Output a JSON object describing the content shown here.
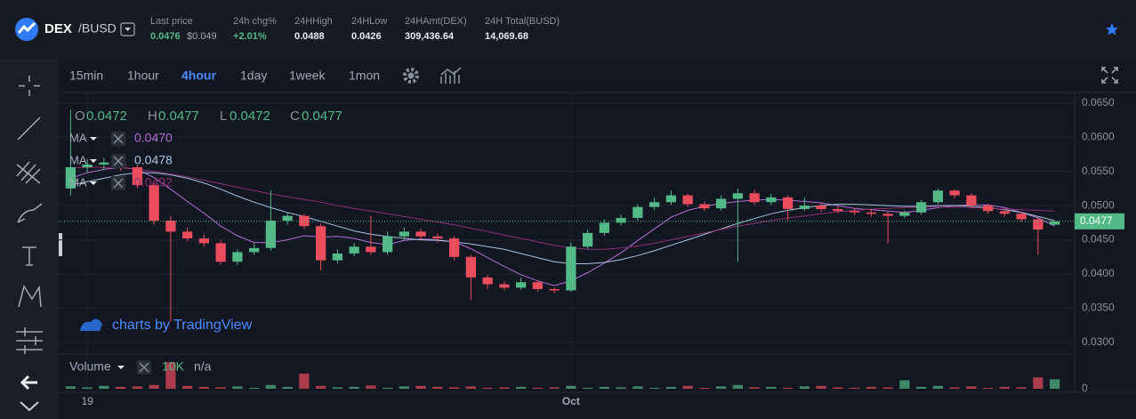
{
  "header": {
    "symbol": "DEX",
    "pair": "/BUSD",
    "stats": [
      {
        "label": "Last price",
        "value": "0.0476",
        "sub": "$0.049"
      },
      {
        "label": "24h chg%",
        "value": "+2.01%"
      },
      {
        "label": "24HHigh",
        "value": "0.0488"
      },
      {
        "label": "24HLow",
        "value": "0.0426"
      },
      {
        "label": "24HAmt(DEX)",
        "value": "309,436.64"
      },
      {
        "label": "24H Total(BUSD)",
        "value": "14,069.68"
      }
    ]
  },
  "toolbar": {
    "intervals": [
      "15min",
      "1hour",
      "4hour",
      "1day",
      "1week",
      "1mon"
    ],
    "active": 2
  },
  "chart_data": {
    "type": "candlestick",
    "watermark": "charts by TradingView",
    "legend": {
      "o_label": "O",
      "o": "0.0472",
      "h_label": "H",
      "h": "0.0477",
      "l_label": "L",
      "l": "0.0472",
      "c_label": "C",
      "c": "0.0477"
    },
    "last_price_label": "0.0477",
    "up_color": "#53b987",
    "down_color": "#eb4d5c",
    "ylim": [
      0.0283,
      0.0664
    ],
    "yticks": [
      {
        "value": 0.065,
        "label": "0.0650"
      },
      {
        "value": 0.06,
        "label": "0.0600"
      },
      {
        "value": 0.055,
        "label": "0.0550"
      },
      {
        "value": 0.05,
        "label": "0.0500"
      },
      {
        "value": 0.045,
        "label": "0.0450"
      },
      {
        "value": 0.04,
        "label": "0.0400"
      },
      {
        "value": 0.035,
        "label": "0.0350"
      },
      {
        "value": 0.03,
        "label": "0.0300"
      }
    ],
    "grid": true,
    "volume": {
      "name": "Volume",
      "value_label": "10K",
      "extra": "n/a",
      "vlim": [
        0,
        30000
      ],
      "vticks": [
        0
      ]
    },
    "categories": [
      null,
      "19",
      null,
      null,
      null,
      null,
      null,
      null,
      null,
      null,
      null,
      null,
      null,
      null,
      null,
      null,
      null,
      null,
      null,
      null,
      null,
      null,
      null,
      null,
      null,
      null,
      null,
      null,
      null,
      null,
      "Oct",
      null,
      null,
      null,
      null,
      null,
      null,
      null,
      null,
      null,
      null,
      null,
      null,
      null,
      null,
      null,
      null,
      null,
      null,
      null,
      null,
      null,
      null,
      null,
      null,
      null,
      null,
      null,
      null,
      null
    ],
    "candles": [
      {
        "o": 0.0525,
        "h": 0.064,
        "l": 0.0515,
        "c": 0.0556,
        "v": 2500
      },
      {
        "o": 0.0556,
        "h": 0.0568,
        "l": 0.0548,
        "c": 0.056,
        "v": 1500
      },
      {
        "o": 0.056,
        "h": 0.057,
        "l": 0.0552,
        "c": 0.0563,
        "v": 3000
      },
      {
        "o": 0.0563,
        "h": 0.0567,
        "l": 0.0551,
        "c": 0.0556,
        "v": 2000
      },
      {
        "o": 0.0556,
        "h": 0.0559,
        "l": 0.0525,
        "c": 0.053,
        "v": 2500
      },
      {
        "o": 0.053,
        "h": 0.0533,
        "l": 0.0472,
        "c": 0.0478,
        "v": 4000
      },
      {
        "o": 0.0478,
        "h": 0.0485,
        "l": 0.033,
        "c": 0.0462,
        "v": 28000
      },
      {
        "o": 0.0462,
        "h": 0.0468,
        "l": 0.0448,
        "c": 0.0452,
        "v": 3000
      },
      {
        "o": 0.0452,
        "h": 0.0458,
        "l": 0.044,
        "c": 0.0445,
        "v": 2000
      },
      {
        "o": 0.0445,
        "h": 0.0449,
        "l": 0.0414,
        "c": 0.0418,
        "v": 1500
      },
      {
        "o": 0.0418,
        "h": 0.0436,
        "l": 0.0413,
        "c": 0.0432,
        "v": 2500
      },
      {
        "o": 0.0432,
        "h": 0.0445,
        "l": 0.0428,
        "c": 0.0438,
        "v": 1000
      },
      {
        "o": 0.0438,
        "h": 0.0522,
        "l": 0.0434,
        "c": 0.0478,
        "v": 4000
      },
      {
        "o": 0.0478,
        "h": 0.049,
        "l": 0.0472,
        "c": 0.0485,
        "v": 2000
      },
      {
        "o": 0.0485,
        "h": 0.0488,
        "l": 0.0465,
        "c": 0.047,
        "v": 16000
      },
      {
        "o": 0.047,
        "h": 0.0474,
        "l": 0.0405,
        "c": 0.042,
        "v": 3000
      },
      {
        "o": 0.042,
        "h": 0.0436,
        "l": 0.0416,
        "c": 0.043,
        "v": 1500
      },
      {
        "o": 0.043,
        "h": 0.0445,
        "l": 0.0426,
        "c": 0.044,
        "v": 2000
      },
      {
        "o": 0.044,
        "h": 0.0485,
        "l": 0.0428,
        "c": 0.0432,
        "v": 3500
      },
      {
        "o": 0.0432,
        "h": 0.0462,
        "l": 0.0428,
        "c": 0.0455,
        "v": 1000
      },
      {
        "o": 0.0455,
        "h": 0.0468,
        "l": 0.045,
        "c": 0.0462,
        "v": 2500
      },
      {
        "o": 0.0462,
        "h": 0.0466,
        "l": 0.045,
        "c": 0.0455,
        "v": 3000
      },
      {
        "o": 0.0455,
        "h": 0.0459,
        "l": 0.0446,
        "c": 0.0452,
        "v": 2000
      },
      {
        "o": 0.0452,
        "h": 0.0455,
        "l": 0.042,
        "c": 0.0425,
        "v": 1500
      },
      {
        "o": 0.0425,
        "h": 0.0428,
        "l": 0.0362,
        "c": 0.0395,
        "v": 2500
      },
      {
        "o": 0.0395,
        "h": 0.0399,
        "l": 0.0378,
        "c": 0.0385,
        "v": 1000
      },
      {
        "o": 0.0385,
        "h": 0.0389,
        "l": 0.0376,
        "c": 0.038,
        "v": 1500
      },
      {
        "o": 0.038,
        "h": 0.0395,
        "l": 0.0377,
        "c": 0.0388,
        "v": 2000
      },
      {
        "o": 0.0388,
        "h": 0.0391,
        "l": 0.0374,
        "c": 0.0378,
        "v": 1000
      },
      {
        "o": 0.0378,
        "h": 0.038,
        "l": 0.0372,
        "c": 0.0376,
        "v": 1500
      },
      {
        "o": 0.0376,
        "h": 0.0446,
        "l": 0.0374,
        "c": 0.044,
        "v": 3000
      },
      {
        "o": 0.044,
        "h": 0.0465,
        "l": 0.0437,
        "c": 0.046,
        "v": 1000
      },
      {
        "o": 0.046,
        "h": 0.048,
        "l": 0.0456,
        "c": 0.0475,
        "v": 2000
      },
      {
        "o": 0.0475,
        "h": 0.0487,
        "l": 0.0471,
        "c": 0.0482,
        "v": 1500
      },
      {
        "o": 0.0482,
        "h": 0.0502,
        "l": 0.0478,
        "c": 0.0498,
        "v": 2500
      },
      {
        "o": 0.0498,
        "h": 0.0512,
        "l": 0.0494,
        "c": 0.0505,
        "v": 1000
      },
      {
        "o": 0.0505,
        "h": 0.0522,
        "l": 0.0501,
        "c": 0.0515,
        "v": 2000
      },
      {
        "o": 0.0515,
        "h": 0.0518,
        "l": 0.0498,
        "c": 0.0502,
        "v": 3000
      },
      {
        "o": 0.0502,
        "h": 0.0506,
        "l": 0.0492,
        "c": 0.0496,
        "v": 1000
      },
      {
        "o": 0.0496,
        "h": 0.0515,
        "l": 0.0493,
        "c": 0.051,
        "v": 2500
      },
      {
        "o": 0.051,
        "h": 0.0525,
        "l": 0.0418,
        "c": 0.0518,
        "v": 4000
      },
      {
        "o": 0.0518,
        "h": 0.0523,
        "l": 0.0501,
        "c": 0.0505,
        "v": 1500
      },
      {
        "o": 0.0505,
        "h": 0.0517,
        "l": 0.0501,
        "c": 0.0512,
        "v": 2000
      },
      {
        "o": 0.0512,
        "h": 0.0515,
        "l": 0.0478,
        "c": 0.0495,
        "v": 1000
      },
      {
        "o": 0.0495,
        "h": 0.0512,
        "l": 0.0492,
        "c": 0.05,
        "v": 2500
      },
      {
        "o": 0.05,
        "h": 0.0503,
        "l": 0.0491,
        "c": 0.0495,
        "v": 3000
      },
      {
        "o": 0.0495,
        "h": 0.0499,
        "l": 0.0489,
        "c": 0.0492,
        "v": 1500
      },
      {
        "o": 0.0492,
        "h": 0.0496,
        "l": 0.0486,
        "c": 0.049,
        "v": 1000
      },
      {
        "o": 0.049,
        "h": 0.0494,
        "l": 0.0484,
        "c": 0.0488,
        "v": 2000
      },
      {
        "o": 0.0488,
        "h": 0.0491,
        "l": 0.0445,
        "c": 0.0485,
        "v": 1500
      },
      {
        "o": 0.0485,
        "h": 0.0493,
        "l": 0.0482,
        "c": 0.049,
        "v": 9000
      },
      {
        "o": 0.049,
        "h": 0.0508,
        "l": 0.0487,
        "c": 0.0505,
        "v": 2000
      },
      {
        "o": 0.0505,
        "h": 0.0525,
        "l": 0.0502,
        "c": 0.0522,
        "v": 3000
      },
      {
        "o": 0.0522,
        "h": 0.0524,
        "l": 0.0511,
        "c": 0.0515,
        "v": 1500
      },
      {
        "o": 0.0515,
        "h": 0.0518,
        "l": 0.0496,
        "c": 0.05,
        "v": 2500
      },
      {
        "o": 0.05,
        "h": 0.0503,
        "l": 0.0488,
        "c": 0.0492,
        "v": 1000
      },
      {
        "o": 0.0492,
        "h": 0.0495,
        "l": 0.0484,
        "c": 0.0488,
        "v": 2000
      },
      {
        "o": 0.0488,
        "h": 0.0491,
        "l": 0.0476,
        "c": 0.048,
        "v": 1500
      },
      {
        "o": 0.048,
        "h": 0.0483,
        "l": 0.0428,
        "c": 0.0465,
        "v": 12000
      },
      {
        "o": 0.0472,
        "h": 0.0477,
        "l": 0.0472,
        "c": 0.0477,
        "v": 10000
      }
    ],
    "series": [
      {
        "name": "MA",
        "color": "#b36fd6",
        "value_label": "0.0470",
        "values": [
          0.054,
          0.0548,
          0.0553,
          0.0556,
          0.0553,
          0.0541,
          0.0524,
          0.0506,
          0.0489,
          0.047,
          0.0456,
          0.0446,
          0.0446,
          0.045,
          0.0456,
          0.0454,
          0.0455,
          0.0452,
          0.0446,
          0.0443,
          0.0449,
          0.0451,
          0.045,
          0.0447,
          0.0437,
          0.0424,
          0.0411,
          0.0399,
          0.039,
          0.0383,
          0.039,
          0.0402,
          0.0416,
          0.0431,
          0.0449,
          0.0466,
          0.0483,
          0.0493,
          0.0499,
          0.0503,
          0.0506,
          0.0508,
          0.0509,
          0.0508,
          0.0506,
          0.0504,
          0.05,
          0.0496,
          0.0494,
          0.0492,
          0.049,
          0.0493,
          0.0497,
          0.05,
          0.0501,
          0.0501,
          0.0497,
          0.049,
          0.0482,
          0.047
        ]
      },
      {
        "name": "MA",
        "color": "#a9c4e0",
        "value_label": "0.0478",
        "values": [
          0.053,
          0.0535,
          0.054,
          0.0545,
          0.0548,
          0.0548,
          0.0545,
          0.054,
          0.0533,
          0.0524,
          0.0514,
          0.0505,
          0.0497,
          0.049,
          0.0484,
          0.0477,
          0.047,
          0.0463,
          0.0458,
          0.0455,
          0.0452,
          0.045,
          0.0449,
          0.0447,
          0.0444,
          0.044,
          0.0436,
          0.043,
          0.0424,
          0.0418,
          0.0415,
          0.0415,
          0.0417,
          0.0421,
          0.0427,
          0.0434,
          0.0442,
          0.045,
          0.0458,
          0.0466,
          0.0474,
          0.0481,
          0.0488,
          0.0493,
          0.0497,
          0.05,
          0.0502,
          0.0502,
          0.0501,
          0.05,
          0.0499,
          0.0499,
          0.05,
          0.05,
          0.0499,
          0.0497,
          0.0494,
          0.049,
          0.0484,
          0.0478
        ]
      },
      {
        "name": "MA",
        "color": "#8e2f72",
        "value_label": "0.0492",
        "values": [
          0.0555,
          0.0556,
          0.0556,
          0.0555,
          0.0553,
          0.055,
          0.0546,
          0.0542,
          0.0537,
          0.0532,
          0.0527,
          0.0522,
          0.0517,
          0.0513,
          0.0509,
          0.0505,
          0.05,
          0.0496,
          0.0492,
          0.0488,
          0.0484,
          0.048,
          0.0476,
          0.0472,
          0.0467,
          0.0462,
          0.0457,
          0.0452,
          0.0447,
          0.0442,
          0.0438,
          0.0436,
          0.0436,
          0.0438,
          0.0441,
          0.0445,
          0.045,
          0.0455,
          0.046,
          0.0465,
          0.047,
          0.0474,
          0.0478,
          0.0482,
          0.0485,
          0.0488,
          0.0491,
          0.0493,
          0.0495,
          0.0496,
          0.0497,
          0.0498,
          0.0498,
          0.0498,
          0.0497,
          0.0496,
          0.0495,
          0.0494,
          0.0493,
          0.0492
        ]
      }
    ]
  }
}
